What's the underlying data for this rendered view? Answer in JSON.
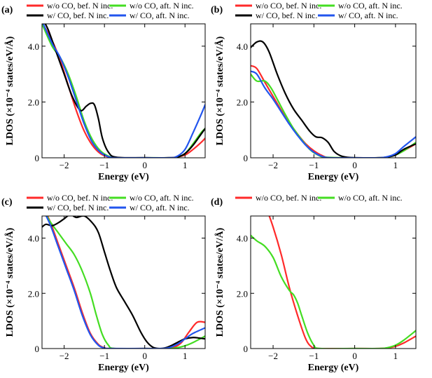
{
  "figure": {
    "units_note": "LDOS in units of 1e-4 states/eV/Å; energy in eV"
  },
  "chart_data": [
    {
      "type": "line",
      "panel_label": "(a)",
      "xlabel": "Energy (eV)",
      "ylabel": "LDOS (×10⁻⁴ states/eV/Å)",
      "xlim": [
        -2.55,
        1.5
      ],
      "ylim": [
        0,
        4.8
      ],
      "xticks": [
        -2,
        -1,
        0,
        1
      ],
      "xtick_labels": [
        "−2",
        "−1",
        "0",
        "1"
      ],
      "yticks": [
        0,
        2,
        4
      ],
      "ytick_labels": [
        "0",
        "2.0",
        "4.0"
      ],
      "legend": [
        "w/o CO, bef. N inc.",
        "w/o CO, aft. N inc.",
        "w/ CO, bef. N inc.",
        "w/ CO, aft. N inc."
      ],
      "series": [
        {
          "name": "w/o CO, bef. N inc.",
          "color": "#ff2a2a",
          "width": 2.2,
          "x": [
            -2.55,
            -2.3,
            -2.1,
            -1.9,
            -1.7,
            -1.5,
            -1.3,
            -1.1,
            -0.9,
            -0.7,
            0.0,
            0.6,
            0.8,
            1.0,
            1.2,
            1.4,
            1.5
          ],
          "y": [
            4.85,
            4.2,
            3.5,
            2.6,
            1.7,
            0.95,
            0.45,
            0.15,
            0.03,
            0,
            0,
            0,
            0.03,
            0.1,
            0.3,
            0.55,
            0.7
          ]
        },
        {
          "name": "w/o CO, aft. N inc.",
          "color": "#44dd22",
          "width": 2.2,
          "x": [
            -2.55,
            -2.3,
            -2.1,
            -1.9,
            -1.7,
            -1.5,
            -1.3,
            -1.1,
            -0.9,
            -0.7,
            0.0,
            0.6,
            0.8,
            1.0,
            1.2,
            1.4,
            1.5
          ],
          "y": [
            4.8,
            4.0,
            3.6,
            3.0,
            2.2,
            1.3,
            0.65,
            0.25,
            0.06,
            0,
            0,
            0,
            0.02,
            0.15,
            0.5,
            0.9,
            1.05
          ]
        },
        {
          "name": "w/ CO, bef. N inc.",
          "color": "#000000",
          "width": 2.2,
          "x": [
            -2.55,
            -2.4,
            -2.2,
            -2.0,
            -1.8,
            -1.6,
            -1.45,
            -1.35,
            -1.25,
            -1.15,
            -1.05,
            -0.9,
            -0.7,
            0.0,
            0.6,
            0.8,
            1.0,
            1.2,
            1.4,
            1.5
          ],
          "y": [
            5.0,
            4.6,
            3.8,
            3.0,
            2.2,
            1.7,
            1.85,
            1.95,
            1.9,
            1.4,
            0.7,
            0.2,
            0.02,
            0,
            0,
            0.02,
            0.15,
            0.45,
            0.85,
            1.05
          ]
        },
        {
          "name": "w/ CO, aft. N inc.",
          "color": "#2255ee",
          "width": 2.2,
          "x": [
            -2.55,
            -2.3,
            -2.1,
            -1.9,
            -1.7,
            -1.5,
            -1.3,
            -1.1,
            -0.9,
            -0.7,
            0.0,
            0.6,
            0.8,
            1.0,
            1.2,
            1.4,
            1.5
          ],
          "y": [
            4.9,
            4.1,
            3.6,
            2.9,
            2.05,
            1.2,
            0.55,
            0.2,
            0.04,
            0,
            0,
            0,
            0.05,
            0.3,
            0.9,
            1.55,
            1.9
          ]
        }
      ]
    },
    {
      "type": "line",
      "panel_label": "(b)",
      "xlabel": "Energy (eV)",
      "ylabel": "LDOS (×10⁻⁴ states/eV/Å)",
      "xlim": [
        -2.55,
        1.5
      ],
      "ylim": [
        0,
        4.8
      ],
      "xticks": [
        -2,
        -1,
        0,
        1
      ],
      "xtick_labels": [
        "−2",
        "−1",
        "0",
        "1"
      ],
      "yticks": [
        0,
        2,
        4
      ],
      "ytick_labels": [
        "0",
        "2.0",
        "4.0"
      ],
      "legend": [
        "w/o CO, bef. N inc.",
        "w/o CO, aft. N inc.",
        "w/ CO, bef. N inc.",
        "w/ CO, aft. N inc."
      ],
      "series": [
        {
          "name": "w/o CO, bef. N inc.",
          "color": "#ff2a2a",
          "width": 2.2,
          "x": [
            -2.55,
            -2.4,
            -2.2,
            -2.0,
            -1.8,
            -1.6,
            -1.4,
            -1.2,
            -1.0,
            -0.8,
            -0.6,
            0.0,
            0.6,
            0.8,
            1.0,
            1.2,
            1.5
          ],
          "y": [
            3.3,
            3.2,
            2.7,
            2.2,
            1.7,
            1.25,
            0.85,
            0.5,
            0.25,
            0.08,
            0,
            0,
            0,
            0.03,
            0.1,
            0.25,
            0.5
          ]
        },
        {
          "name": "w/o CO, aft. N inc.",
          "color": "#44dd22",
          "width": 2.2,
          "x": [
            -2.55,
            -2.4,
            -2.2,
            -2.05,
            -1.9,
            -1.7,
            -1.5,
            -1.3,
            -1.1,
            -0.9,
            -0.7,
            0.0,
            0.6,
            0.8,
            1.0,
            1.2,
            1.5
          ],
          "y": [
            3.0,
            2.75,
            2.75,
            2.5,
            2.1,
            1.55,
            1.05,
            0.65,
            0.3,
            0.1,
            0.02,
            0,
            0,
            0.02,
            0.1,
            0.25,
            0.55
          ]
        },
        {
          "name": "w/ CO, bef. N inc.",
          "color": "#000000",
          "width": 2.2,
          "x": [
            -2.55,
            -2.4,
            -2.25,
            -2.1,
            -1.9,
            -1.7,
            -1.5,
            -1.3,
            -1.1,
            -0.95,
            -0.8,
            -0.65,
            -0.5,
            -0.3,
            0.0,
            0.6,
            0.8,
            1.0,
            1.2,
            1.5
          ],
          "y": [
            3.95,
            4.15,
            4.15,
            3.8,
            3.0,
            2.3,
            1.75,
            1.35,
            0.95,
            0.75,
            0.72,
            0.55,
            0.22,
            0.05,
            0,
            0,
            0.03,
            0.1,
            0.3,
            0.5
          ]
        },
        {
          "name": "w/ CO, aft. N inc.",
          "color": "#2255ee",
          "width": 2.2,
          "x": [
            -2.55,
            -2.4,
            -2.2,
            -2.0,
            -1.8,
            -1.6,
            -1.4,
            -1.2,
            -1.0,
            -0.8,
            -0.6,
            0.0,
            0.6,
            0.8,
            1.0,
            1.2,
            1.5
          ],
          "y": [
            3.1,
            3.0,
            2.5,
            2.1,
            1.65,
            1.2,
            0.8,
            0.45,
            0.2,
            0.05,
            0,
            0,
            0,
            0.04,
            0.15,
            0.4,
            0.75
          ]
        }
      ]
    },
    {
      "type": "line",
      "panel_label": "(c)",
      "xlabel": "Energy (eV)",
      "ylabel": "LDOS (×10⁻⁴ states/eV/Å)",
      "xlim": [
        -2.55,
        1.5
      ],
      "ylim": [
        0,
        4.8
      ],
      "xticks": [
        -2,
        -1,
        0,
        1
      ],
      "xtick_labels": [
        "−2",
        "−1",
        "0",
        "1"
      ],
      "yticks": [
        0,
        2,
        4
      ],
      "ytick_labels": [
        "0",
        "2.0",
        "4.0"
      ],
      "legend": [
        "w/o CO, bef. N inc.",
        "w/o CO, aft. N inc.",
        "w/ CO, bef. N inc.",
        "w/ CO, aft. N inc."
      ],
      "series": [
        {
          "name": "w/o CO, bef. N inc.",
          "color": "#ff2a2a",
          "width": 2.2,
          "x": [
            -2.55,
            -2.35,
            -2.15,
            -1.95,
            -1.75,
            -1.55,
            -1.35,
            -1.15,
            -1.0,
            -0.85,
            0.0,
            0.5,
            0.7,
            0.9,
            1.1,
            1.3,
            1.5
          ],
          "y": [
            5.2,
            4.6,
            3.8,
            3.0,
            2.2,
            1.3,
            0.55,
            0.15,
            0.03,
            0,
            0,
            0,
            0.03,
            0.2,
            0.6,
            0.95,
            0.95
          ]
        },
        {
          "name": "w/o CO, aft. N inc.",
          "color": "#44dd22",
          "width": 2.2,
          "x": [
            -2.55,
            -2.35,
            -2.15,
            -1.95,
            -1.75,
            -1.55,
            -1.35,
            -1.2,
            -1.05,
            -0.9,
            -0.75,
            0.0,
            0.6,
            0.8,
            1.0,
            1.2,
            1.5
          ],
          "y": [
            5.1,
            4.6,
            4.2,
            3.8,
            3.4,
            2.8,
            2.0,
            1.2,
            0.5,
            0.12,
            0,
            0,
            0,
            0.03,
            0.1,
            0.22,
            0.45
          ]
        },
        {
          "name": "w/ CO, bef. N inc.",
          "color": "#000000",
          "width": 2.2,
          "x": [
            -2.55,
            -2.45,
            -2.3,
            -2.15,
            -2.0,
            -1.85,
            -1.7,
            -1.5,
            -1.3,
            -1.15,
            -1.0,
            -0.85,
            -0.7,
            -0.5,
            -0.3,
            -0.1,
            0.05,
            0.2,
            0.35,
            0.5,
            0.65,
            0.85,
            1.0,
            1.2,
            1.35,
            1.5
          ],
          "y": [
            4.4,
            4.5,
            4.45,
            4.55,
            4.7,
            4.85,
            4.75,
            4.8,
            4.55,
            4.2,
            3.5,
            2.8,
            2.2,
            1.7,
            1.2,
            0.6,
            0.25,
            0.05,
            0.0,
            0.02,
            0.1,
            0.25,
            0.35,
            0.4,
            0.38,
            0.35
          ]
        },
        {
          "name": "w/ CO, aft. N inc.",
          "color": "#2255ee",
          "width": 2.2,
          "x": [
            -2.55,
            -2.35,
            -2.15,
            -1.95,
            -1.75,
            -1.55,
            -1.35,
            -1.15,
            -1.0,
            -0.85,
            0.0,
            0.4,
            0.6,
            0.8,
            1.0,
            1.2,
            1.5
          ],
          "y": [
            5.1,
            4.5,
            3.7,
            2.9,
            2.1,
            1.2,
            0.5,
            0.12,
            0.02,
            0,
            0,
            0,
            0.03,
            0.15,
            0.35,
            0.55,
            0.75
          ]
        }
      ]
    },
    {
      "type": "line",
      "panel_label": "(d)",
      "xlabel": "Energy (eV)",
      "ylabel": "LDOS (×10⁻⁴ states/eV/Å)",
      "xlim": [
        -2.55,
        1.5
      ],
      "ylim": [
        0,
        4.8
      ],
      "xticks": [
        -2,
        -1,
        0,
        1
      ],
      "xtick_labels": [
        "−2",
        "−1",
        "0",
        "1"
      ],
      "yticks": [
        0,
        2,
        4
      ],
      "ytick_labels": [
        "0",
        "2.0",
        "4.0"
      ],
      "legend": [
        "w/o CO, bef. N inc.",
        "w/o CO, aft. N inc."
      ],
      "series": [
        {
          "name": "w/o CO, bef. N inc.",
          "color": "#ff2a2a",
          "width": 2.2,
          "x": [
            -2.55,
            -2.35,
            -2.15,
            -2.0,
            -1.8,
            -1.6,
            -1.4,
            -1.2,
            -1.05,
            -0.9,
            0.0,
            0.6,
            0.8,
            1.0,
            1.2,
            1.5
          ],
          "y": [
            6.0,
            5.5,
            5.0,
            4.4,
            3.4,
            2.2,
            1.2,
            0.35,
            0.05,
            0,
            0,
            0,
            0.02,
            0.08,
            0.2,
            0.45
          ]
        },
        {
          "name": "w/o CO, aft. N inc.",
          "color": "#44dd22",
          "width": 2.2,
          "x": [
            -2.55,
            -2.4,
            -2.2,
            -2.0,
            -1.8,
            -1.6,
            -1.5,
            -1.4,
            -1.3,
            -1.15,
            -1.0,
            -0.85,
            0.0,
            0.6,
            0.8,
            1.0,
            1.2,
            1.5
          ],
          "y": [
            4.1,
            3.9,
            3.7,
            3.3,
            2.6,
            2.1,
            1.95,
            1.65,
            1.2,
            0.55,
            0.12,
            0,
            0,
            0,
            0.03,
            0.12,
            0.3,
            0.65
          ]
        }
      ]
    }
  ]
}
